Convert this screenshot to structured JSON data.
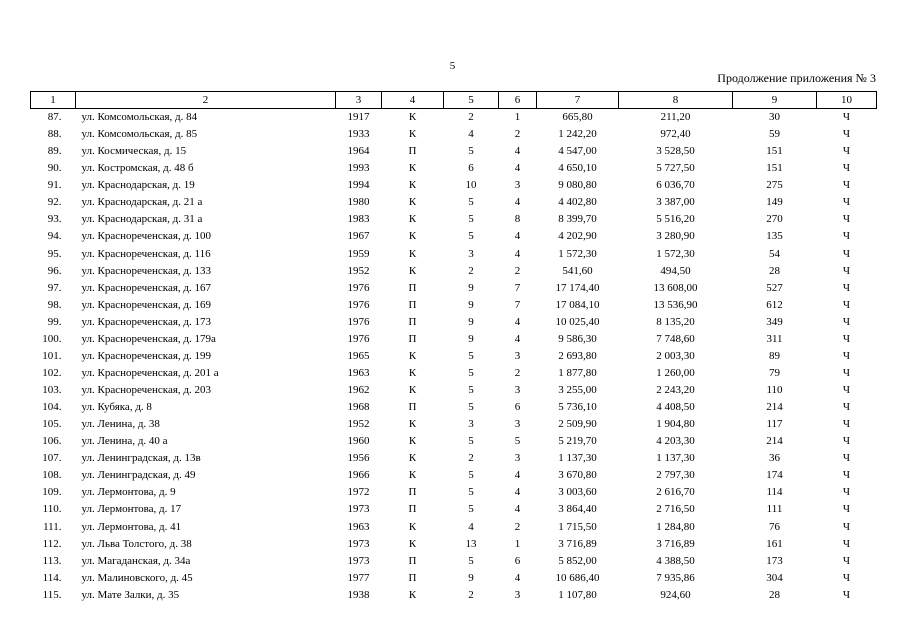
{
  "page_number": "5",
  "subtitle": "Продолжение приложения № 3",
  "columns": [
    "1",
    "2",
    "3",
    "4",
    "5",
    "6",
    "7",
    "8",
    "9",
    "10"
  ],
  "rows": [
    [
      "87.",
      "ул. Комсомольская, д. 84",
      "1917",
      "К",
      "2",
      "1",
      "665,80",
      "211,20",
      "30",
      "Ч"
    ],
    [
      "88.",
      "ул. Комсомольская, д. 85",
      "1933",
      "К",
      "4",
      "2",
      "1 242,20",
      "972,40",
      "59",
      "Ч"
    ],
    [
      "89.",
      "ул. Космическая, д. 15",
      "1964",
      "П",
      "5",
      "4",
      "4 547,00",
      "3 528,50",
      "151",
      "Ч"
    ],
    [
      "90.",
      "ул. Костромская, д. 48 б",
      "1993",
      "К",
      "6",
      "4",
      "4 650,10",
      "5 727,50",
      "151",
      "Ч"
    ],
    [
      "91.",
      "ул. Краснодарская, д. 19",
      "1994",
      "К",
      "10",
      "3",
      "9 080,80",
      "6 036,70",
      "275",
      "Ч"
    ],
    [
      "92.",
      "ул. Краснодарская, д. 21 а",
      "1980",
      "К",
      "5",
      "4",
      "4 402,80",
      "3 387,00",
      "149",
      "Ч"
    ],
    [
      "93.",
      "ул. Краснодарская, д. 31 а",
      "1983",
      "К",
      "5",
      "8",
      "8 399,70",
      "5 516,20",
      "270",
      "Ч"
    ],
    [
      "94.",
      "ул. Краснореченская, д. 100",
      "1967",
      "К",
      "5",
      "4",
      "4 202,90",
      "3 280,90",
      "135",
      "Ч"
    ],
    [
      "95.",
      "ул. Краснореченская, д. 116",
      "1959",
      "К",
      "3",
      "4",
      "1 572,30",
      "1 572,30",
      "54",
      "Ч"
    ],
    [
      "96.",
      "ул. Краснореченская, д. 133",
      "1952",
      "К",
      "2",
      "2",
      "541,60",
      "494,50",
      "28",
      "Ч"
    ],
    [
      "97.",
      "ул. Краснореченская, д. 167",
      "1976",
      "П",
      "9",
      "7",
      "17 174,40",
      "13 608,00",
      "527",
      "Ч"
    ],
    [
      "98.",
      "ул. Краснореченская, д. 169",
      "1976",
      "П",
      "9",
      "7",
      "17 084,10",
      "13 536,90",
      "612",
      "Ч"
    ],
    [
      "99.",
      "ул. Краснореченская, д. 173",
      "1976",
      "П",
      "9",
      "4",
      "10 025,40",
      "8 135,20",
      "349",
      "Ч"
    ],
    [
      "100.",
      "ул. Краснореченская, д. 179а",
      "1976",
      "П",
      "9",
      "4",
      "9 586,30",
      "7 748,60",
      "311",
      "Ч"
    ],
    [
      "101.",
      "ул. Краснореченская, д. 199",
      "1965",
      "К",
      "5",
      "3",
      "2 693,80",
      "2 003,30",
      "89",
      "Ч"
    ],
    [
      "102.",
      "ул. Краснореченская, д. 201 а",
      "1963",
      "К",
      "5",
      "2",
      "1 877,80",
      "1 260,00",
      "79",
      "Ч"
    ],
    [
      "103.",
      "ул. Краснореченская, д. 203",
      "1962",
      "К",
      "5",
      "3",
      "3 255,00",
      "2 243,20",
      "110",
      "Ч"
    ],
    [
      "104.",
      "ул. Кубяка, д. 8",
      "1968",
      "П",
      "5",
      "6",
      "5 736,10",
      "4 408,50",
      "214",
      "Ч"
    ],
    [
      "105.",
      "ул. Ленина, д. 38",
      "1952",
      "К",
      "3",
      "3",
      "2 509,90",
      "1 904,80",
      "117",
      "Ч"
    ],
    [
      "106.",
      "ул. Ленина, д. 40 а",
      "1960",
      "К",
      "5",
      "5",
      "5 219,70",
      "4 203,30",
      "214",
      "Ч"
    ],
    [
      "107.",
      "ул. Ленинградская, д. 13в",
      "1956",
      "К",
      "2",
      "3",
      "1 137,30",
      "1 137,30",
      "36",
      "Ч"
    ],
    [
      "108.",
      "ул. Ленинградская, д. 49",
      "1966",
      "К",
      "5",
      "4",
      "3 670,80",
      "2 797,30",
      "174",
      "Ч"
    ],
    [
      "109.",
      "ул. Лермонтова, д. 9",
      "1972",
      "П",
      "5",
      "4",
      "3 003,60",
      "2 616,70",
      "114",
      "Ч"
    ],
    [
      "110.",
      "ул. Лермонтова, д. 17",
      "1973",
      "П",
      "5",
      "4",
      "3 864,40",
      "2 716,50",
      "111",
      "Ч"
    ],
    [
      "111.",
      "ул. Лермонтова, д. 41",
      "1963",
      "К",
      "4",
      "2",
      "1 715,50",
      "1 284,80",
      "76",
      "Ч"
    ],
    [
      "112.",
      "ул. Льва Толстого, д. 38",
      "1973",
      "К",
      "13",
      "1",
      "3 716,89",
      "3 716,89",
      "161",
      "Ч"
    ],
    [
      "113.",
      "ул. Магаданская, д. 34а",
      "1973",
      "П",
      "5",
      "6",
      "5 852,00",
      "4 388,50",
      "173",
      "Ч"
    ],
    [
      "114.",
      "ул. Малиновского, д. 45",
      "1977",
      "П",
      "9",
      "4",
      "10 686,40",
      "7 935,86",
      "304",
      "Ч"
    ],
    [
      "115.",
      "ул. Мате Залки, д. 35",
      "1938",
      "К",
      "2",
      "3",
      "1 107,80",
      "924,60",
      "28",
      "Ч"
    ]
  ]
}
